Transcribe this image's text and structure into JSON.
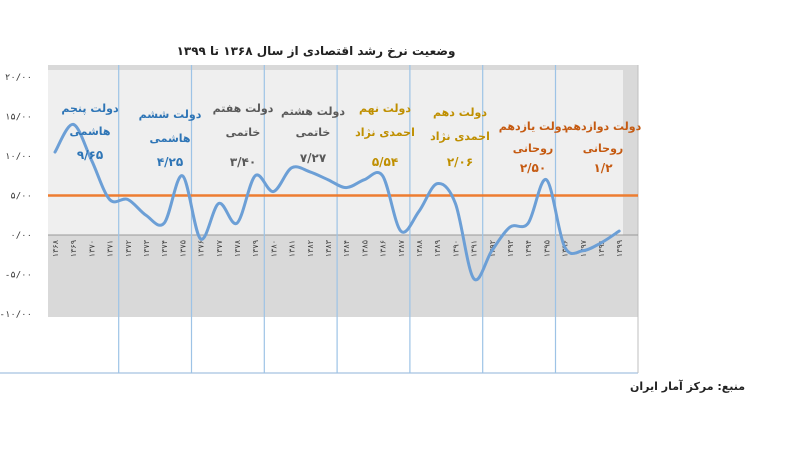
{
  "chart_data": {
    "type": "line",
    "title": "وضعیت نرخ رشد اقتصادی از سال ۱۳۶۸ تا ۱۳۹۹",
    "source": "منبع: مرکز آمار ایران",
    "y_ticks": [
      "-۱۰/۰۰",
      "-۵/۰۰",
      "۰/۰۰",
      "۵/۰۰",
      "۱۰/۰۰",
      "۱۵/۰۰",
      "۲۰/۰۰"
    ],
    "ylim": [
      -10,
      20
    ],
    "x": [
      "۱۳۶۸",
      "۱۳۶۹",
      "۱۳۷۰",
      "۱۳۷۱",
      "۱۳۷۲",
      "۱۳۷۳",
      "۱۳۷۴",
      "۱۳۷۵",
      "۱۳۷۶",
      "۱۳۷۷",
      "۱۳۷۸",
      "۱۳۷۹",
      "۱۳۸۰",
      "۱۳۸۱",
      "۱۳۸۲",
      "۱۳۸۳",
      "۱۳۸۴",
      "۱۳۸۵",
      "۱۳۸۶",
      "۱۳۸۷",
      "۱۳۸۸",
      "۱۳۸۹",
      "۱۳۹۰",
      "۱۳۹۱",
      "۱۳۹۲",
      "۱۳۹۳",
      "۱۳۹۴",
      "۱۳۹۵",
      "۱۳۹۶",
      "۱۳۹۷",
      "۱۳۹۸",
      "۱۳۹۹"
    ],
    "values": [
      10.5,
      14,
      9.5,
      4.5,
      4.5,
      2.5,
      1.5,
      7.5,
      -0.5,
      4,
      1.5,
      7.5,
      5.5,
      8.5,
      8,
      7,
      6,
      7,
      7.5,
      0.5,
      3,
      6.5,
      4,
      -5.5,
      -2,
      1,
      1.5,
      7,
      -1.5,
      -2,
      -1,
      0.5
    ],
    "reference_line": 5,
    "governments": [
      {
        "name": "دولت پنجم",
        "name2": "هاشمی",
        "value": "۹/۶۵",
        "color": "#2e75b6"
      },
      {
        "name": "دولت ششم",
        "name2": "هاشمی",
        "value": "۴/۲۵",
        "color": "#2e75b6"
      },
      {
        "name": "دولت هفتم",
        "name2": "خاتمی",
        "value": "۳/۴۰",
        "color": "#595959"
      },
      {
        "name": "دولت هشتم",
        "name2": "خاتمی",
        "value": "۷/۲۷",
        "color": "#595959"
      },
      {
        "name": "دولت نهم",
        "name2": "احمدی نژاد",
        "value": "۵/۵۴",
        "color": "#bf8f00"
      },
      {
        "name": "دولت دهم",
        "name2": "احمدی نژاد",
        "value": "۲/۰۶",
        "color": "#bf8f00"
      },
      {
        "name": "دولت یازدهم",
        "name2": "روحانی",
        "value": "۲/۵۰",
        "color": "#c55a11"
      },
      {
        "name": "دولت دوازدهم",
        "name2": "روحانی",
        "value": "۱/۲",
        "color": "#c55a11"
      }
    ],
    "colors": {
      "line": "#6c9fd6",
      "reference": "#ed7d31",
      "divider": "#9dc3e6",
      "band": "#d9d9d9"
    }
  }
}
